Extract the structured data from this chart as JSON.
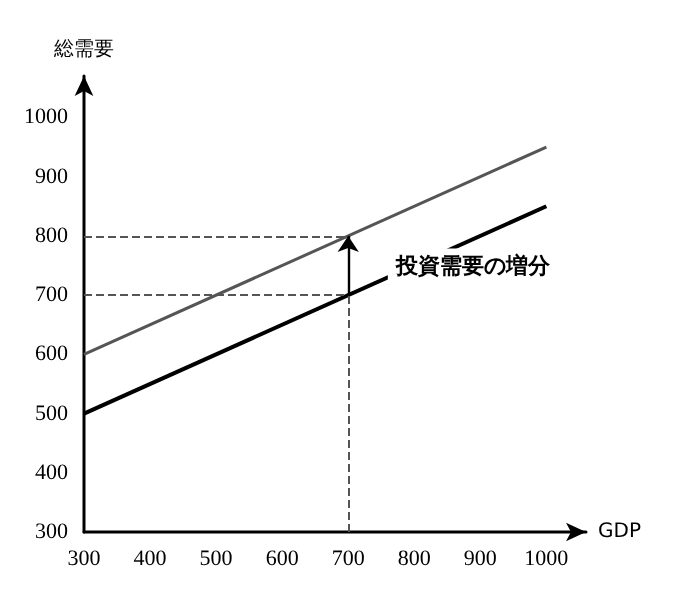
{
  "chart_data": {
    "type": "line",
    "xlabel": "GDP",
    "ylabel": "総需要",
    "x": [
      300,
      1000
    ],
    "series": [
      {
        "color": "#555555",
        "values": [
          600,
          950
        ]
      },
      {
        "color": "#000000",
        "values": [
          500,
          850
        ]
      }
    ],
    "xlim": [
      300,
      1060
    ],
    "ylim": [
      300,
      1070
    ],
    "xticks": [
      300,
      400,
      500,
      600,
      700,
      800,
      900,
      1000
    ],
    "yticks": [
      300,
      400,
      500,
      600,
      700,
      800,
      900,
      1000
    ],
    "grid": false,
    "line_style": "solid",
    "ref_lines": [
      {
        "axis": "y",
        "value": 800,
        "color": "#555555",
        "line_style": "dashed"
      },
      {
        "axis": "y",
        "value": 700,
        "color": "#555555",
        "line_style": "dashed"
      },
      {
        "axis": "x",
        "value": 700,
        "color": "#555555",
        "line_style": "dashed"
      }
    ],
    "annotations": [
      {
        "text": "投資需要の増分",
        "x": 760,
        "y": 750
      }
    ]
  }
}
